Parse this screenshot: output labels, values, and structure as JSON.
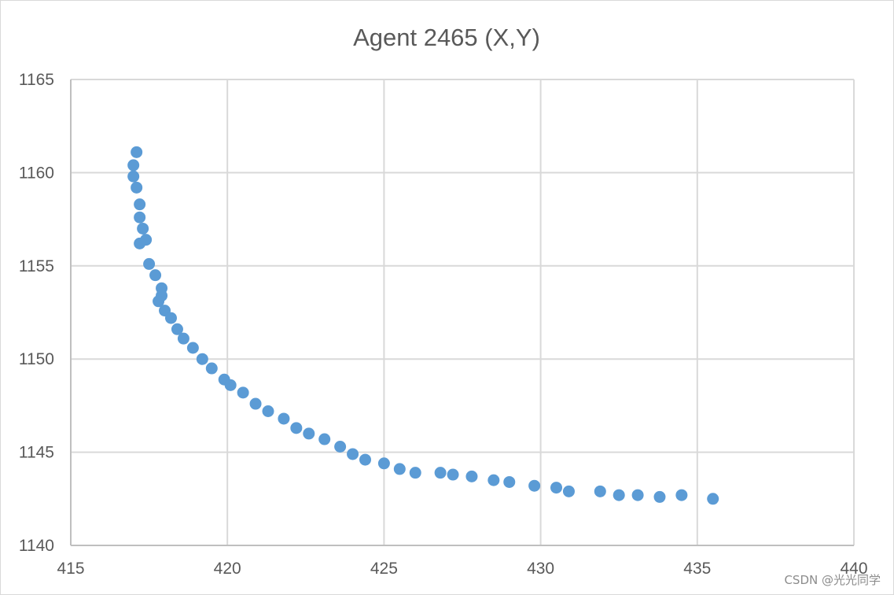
{
  "chart_data": {
    "type": "scatter",
    "title": "Agent 2465 (X,Y)",
    "xlabel": "",
    "ylabel": "",
    "xlim": [
      415,
      440
    ],
    "ylim": [
      1140,
      1165
    ],
    "x_ticks": [
      415,
      420,
      425,
      430,
      435,
      440
    ],
    "y_ticks": [
      1140,
      1145,
      1150,
      1155,
      1160,
      1165
    ],
    "grid": true,
    "legend": "none",
    "marker_color": "#5b9bd5",
    "series": [
      {
        "points": [
          [
            417.1,
            1161.1
          ],
          [
            417.0,
            1160.4
          ],
          [
            417.0,
            1159.8
          ],
          [
            417.1,
            1159.2
          ],
          [
            417.2,
            1158.3
          ],
          [
            417.2,
            1157.6
          ],
          [
            417.3,
            1157.0
          ],
          [
            417.4,
            1156.4
          ],
          [
            417.2,
            1156.2
          ],
          [
            417.5,
            1155.1
          ],
          [
            417.7,
            1154.5
          ],
          [
            417.9,
            1153.8
          ],
          [
            417.9,
            1153.4
          ],
          [
            417.8,
            1153.1
          ],
          [
            418.0,
            1152.6
          ],
          [
            418.2,
            1152.2
          ],
          [
            418.4,
            1151.6
          ],
          [
            418.6,
            1151.1
          ],
          [
            418.9,
            1150.6
          ],
          [
            419.2,
            1150.0
          ],
          [
            419.5,
            1149.5
          ],
          [
            419.9,
            1148.9
          ],
          [
            420.1,
            1148.6
          ],
          [
            420.5,
            1148.2
          ],
          [
            420.9,
            1147.6
          ],
          [
            421.3,
            1147.2
          ],
          [
            421.8,
            1146.8
          ],
          [
            422.2,
            1146.3
          ],
          [
            422.6,
            1146.0
          ],
          [
            423.1,
            1145.7
          ],
          [
            423.6,
            1145.3
          ],
          [
            424.0,
            1144.9
          ],
          [
            424.4,
            1144.6
          ],
          [
            425.0,
            1144.4
          ],
          [
            425.5,
            1144.1
          ],
          [
            426.0,
            1143.9
          ],
          [
            426.8,
            1143.9
          ],
          [
            427.2,
            1143.8
          ],
          [
            427.8,
            1143.7
          ],
          [
            428.5,
            1143.5
          ],
          [
            429.0,
            1143.4
          ],
          [
            429.8,
            1143.2
          ],
          [
            430.5,
            1143.1
          ],
          [
            430.9,
            1142.9
          ],
          [
            431.9,
            1142.9
          ],
          [
            432.5,
            1142.7
          ],
          [
            433.1,
            1142.7
          ],
          [
            433.8,
            1142.6
          ],
          [
            434.5,
            1142.7
          ],
          [
            435.5,
            1142.5
          ]
        ]
      }
    ]
  },
  "watermark": "CSDN @光光同学"
}
